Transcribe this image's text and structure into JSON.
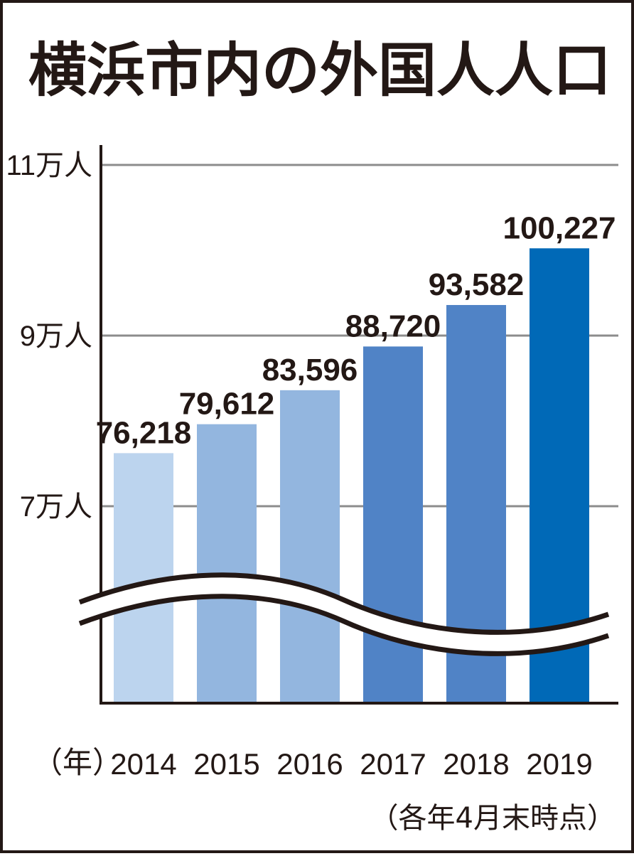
{
  "chart_data": {
    "type": "bar",
    "title": "横浜市内の外国人人口",
    "categories": [
      "2014",
      "2015",
      "2016",
      "2017",
      "2018",
      "2019"
    ],
    "values": [
      76218,
      79612,
      83596,
      88720,
      93582,
      100227
    ],
    "value_labels": [
      "76,218",
      "79,612",
      "83,596",
      "88,720",
      "93,582",
      "100,227"
    ],
    "bar_colors": [
      "#bcd4ee",
      "#93b6df",
      "#93b6df",
      "#5083c6",
      "#5083c6",
      "#0069b7"
    ],
    "ylim": [
      50000,
      110000
    ],
    "yticks": [
      70000,
      90000,
      110000
    ],
    "ytick_labels": [
      "7万人",
      "9万人",
      "11万人"
    ],
    "xunit_label": "（年）",
    "note": "（各年4月末時点）",
    "axis_break": true,
    "grid": true
  }
}
